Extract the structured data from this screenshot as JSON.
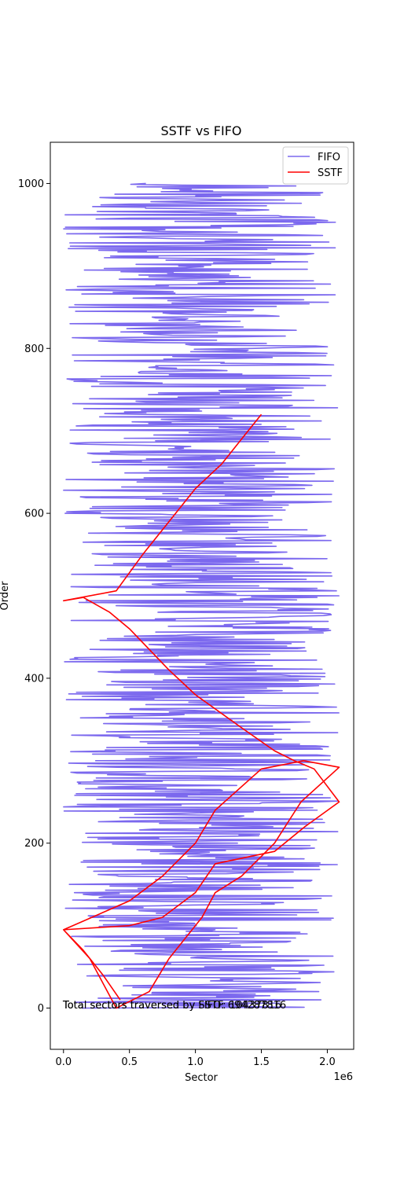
{
  "chart_data": {
    "type": "line",
    "title": "SSTF vs FIFO",
    "xlabel": "Sector",
    "ylabel": "Order",
    "x_offset_label": "1e6",
    "xlim": [
      -100000,
      2200000
    ],
    "ylim": [
      -50,
      1050
    ],
    "x_ticks": [
      0,
      500000,
      1000000,
      1500000,
      2000000
    ],
    "x_tick_labels": [
      "0.0",
      "0.5",
      "1.0",
      "1.5",
      "2.0"
    ],
    "y_ticks": [
      0,
      200,
      400,
      600,
      800,
      1000
    ],
    "y_tick_labels": [
      "0",
      "200",
      "400",
      "600",
      "800",
      "1000"
    ],
    "grid": false,
    "legend": "top-right",
    "annotations": [
      "Total sectors traversed by FIFO: 694287816",
      "Total sectors traversed by SSTF: 10437816"
    ],
    "series": [
      {
        "name": "FIFO",
        "color": "#7b68ee",
        "pattern": "random",
        "points": 1000,
        "x_range": [
          0,
          2090000
        ],
        "y_range": [
          0,
          1000
        ]
      },
      {
        "name": "SSTF",
        "color": "#ff0000",
        "x": [
          430000,
          300000,
          150000,
          0,
          500000,
          750000,
          1000000,
          1150000,
          1500000,
          1820000,
          2090000,
          1800000,
          1600000,
          1350000,
          1150000,
          1050000,
          800000,
          650000,
          400000,
          200000,
          0,
          500000,
          750000,
          1000000,
          1150000,
          1600000,
          1830000,
          2090000,
          1900000,
          1750000,
          1600000,
          1350000,
          1000000,
          800000,
          500000,
          350000,
          150000,
          0,
          400000,
          600000,
          800000,
          1000000,
          1200000,
          1350000,
          1500000
        ],
        "y": [
          10,
          40,
          70,
          95,
          130,
          160,
          200,
          240,
          290,
          300,
          292,
          250,
          200,
          160,
          140,
          110,
          60,
          20,
          0,
          60,
          95,
          100,
          110,
          140,
          175,
          190,
          220,
          250,
          290,
          300,
          312,
          340,
          380,
          410,
          460,
          480,
          498,
          494,
          506,
          550,
          590,
          630,
          660,
          690,
          720
        ]
      }
    ]
  }
}
